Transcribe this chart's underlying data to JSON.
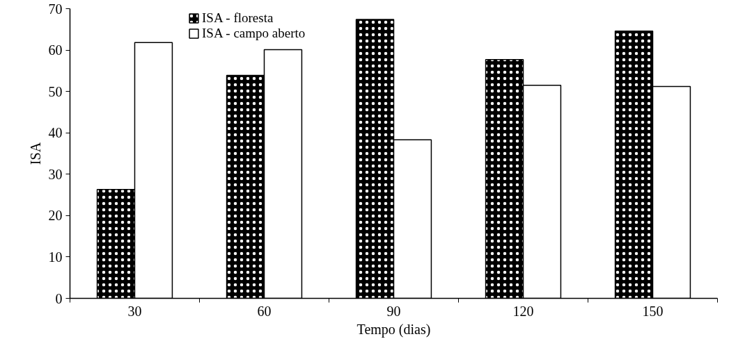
{
  "chart_data": {
    "type": "bar",
    "xlabel": "Tempo (dias)",
    "ylabel": "ISA",
    "categories": [
      "30",
      "60",
      "90",
      "120",
      "150"
    ],
    "series": [
      {
        "name": "ISA - floresta",
        "color": "#000000",
        "values": [
          26.3,
          53.9,
          67.4,
          57.7,
          64.6
        ]
      },
      {
        "name": "ISA - campo aberto",
        "color": "#ffffff",
        "values": [
          61.8,
          60.1,
          38.3,
          51.5,
          51.2
        ]
      }
    ],
    "ylim": [
      0,
      70
    ],
    "yticks": [
      0,
      10,
      20,
      30,
      40,
      50,
      60,
      70
    ],
    "grid": false,
    "legend": "top"
  }
}
